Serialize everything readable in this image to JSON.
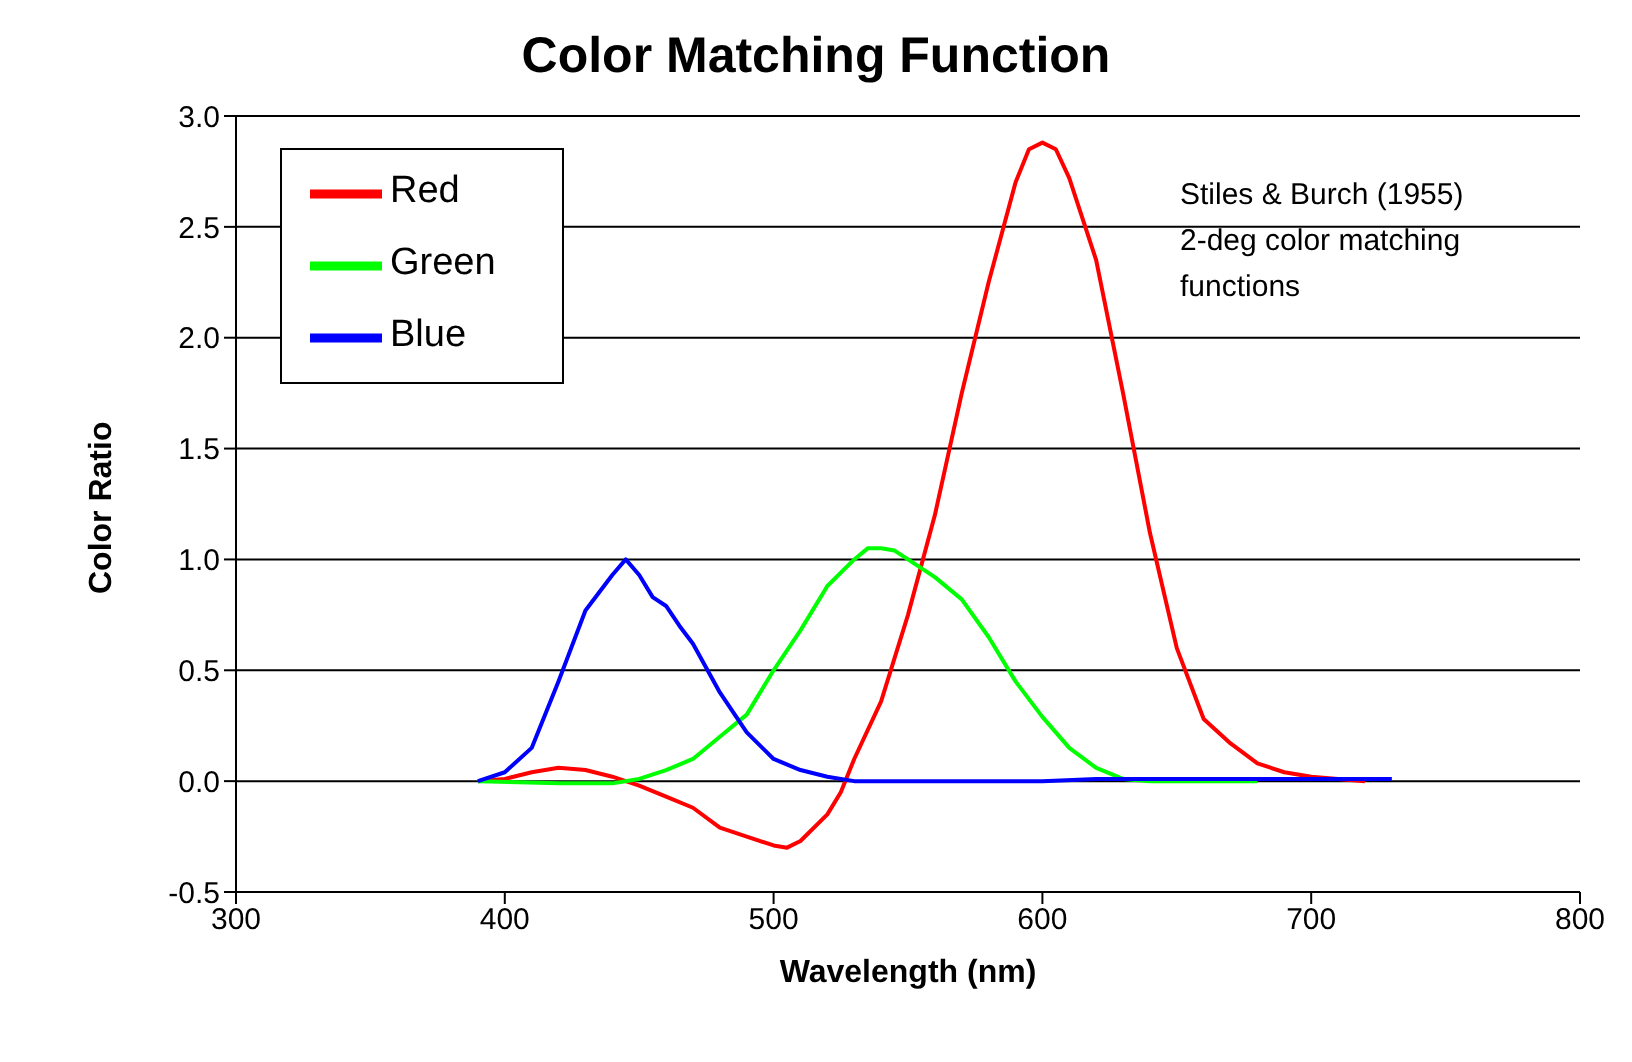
{
  "chart_data": {
    "type": "line",
    "title": "Color Matching Function",
    "xlabel": "Wavelength (nm)",
    "ylabel": "Color Ratio",
    "annotations": [
      "Stiles & Burch (1955) 2-deg color matching functions"
    ],
    "xlim": [
      300,
      800
    ],
    "xticks": [
      300,
      400,
      500,
      600,
      700,
      800
    ],
    "ylim": [
      -0.5,
      3
    ],
    "yticks": [
      {
        "value": -0.5,
        "label": "-0.5"
      },
      {
        "value": 0,
        "label": "0.0"
      },
      {
        "value": 0.5,
        "label": "0.5"
      },
      {
        "value": 1,
        "label": "1.0"
      },
      {
        "value": 1.5,
        "label": "1.5"
      },
      {
        "value": 2,
        "label": "2.0"
      },
      {
        "value": 2.5,
        "label": "2.5"
      },
      {
        "value": 3,
        "label": "3.0"
      }
    ],
    "grid": "y",
    "legend": "top left",
    "marker": "none",
    "line_style": "solid",
    "series": [
      {
        "name": "Red",
        "color": "#ff0000",
        "x": [
          390,
          400,
          410,
          420,
          430,
          440,
          450,
          460,
          470,
          480,
          490,
          500,
          505,
          510,
          520,
          525,
          530,
          540,
          550,
          560,
          570,
          580,
          590,
          595,
          600,
          605,
          610,
          620,
          630,
          640,
          650,
          660,
          670,
          680,
          690,
          700,
          720
        ],
        "values": [
          0,
          0.01,
          0.04,
          0.06,
          0.05,
          0.02,
          -0.02,
          -0.07,
          -0.12,
          -0.21,
          -0.25,
          -0.29,
          -0.3,
          -0.27,
          -0.15,
          -0.05,
          0.1,
          0.36,
          0.75,
          1.2,
          1.75,
          2.25,
          2.7,
          2.85,
          2.88,
          2.85,
          2.72,
          2.35,
          1.75,
          1.12,
          0.6,
          0.28,
          0.17,
          0.08,
          0.04,
          0.02,
          0
        ]
      },
      {
        "name": "Green",
        "color": "#00ff00",
        "x": [
          390,
          420,
          440,
          450,
          460,
          470,
          480,
          490,
          500,
          510,
          520,
          530,
          535,
          540,
          545,
          550,
          560,
          570,
          580,
          590,
          600,
          610,
          620,
          630,
          640,
          680
        ],
        "values": [
          0,
          -0.01,
          -0.01,
          0.01,
          0.05,
          0.1,
          0.2,
          0.3,
          0.5,
          0.68,
          0.88,
          1,
          1.05,
          1.05,
          1.04,
          1,
          0.92,
          0.82,
          0.65,
          0.45,
          0.29,
          0.15,
          0.06,
          0.01,
          0,
          0
        ]
      },
      {
        "name": "Blue",
        "color": "#0000ff",
        "x": [
          390,
          400,
          410,
          420,
          430,
          440,
          445,
          450,
          455,
          460,
          465,
          470,
          480,
          490,
          500,
          510,
          520,
          530,
          600,
          620,
          700,
          730
        ],
        "values": [
          0,
          0.04,
          0.15,
          0.45,
          0.77,
          0.93,
          1,
          0.93,
          0.83,
          0.79,
          0.7,
          0.62,
          0.4,
          0.22,
          0.1,
          0.05,
          0.02,
          0,
          0,
          0.01,
          0.01,
          0.01
        ]
      }
    ]
  }
}
